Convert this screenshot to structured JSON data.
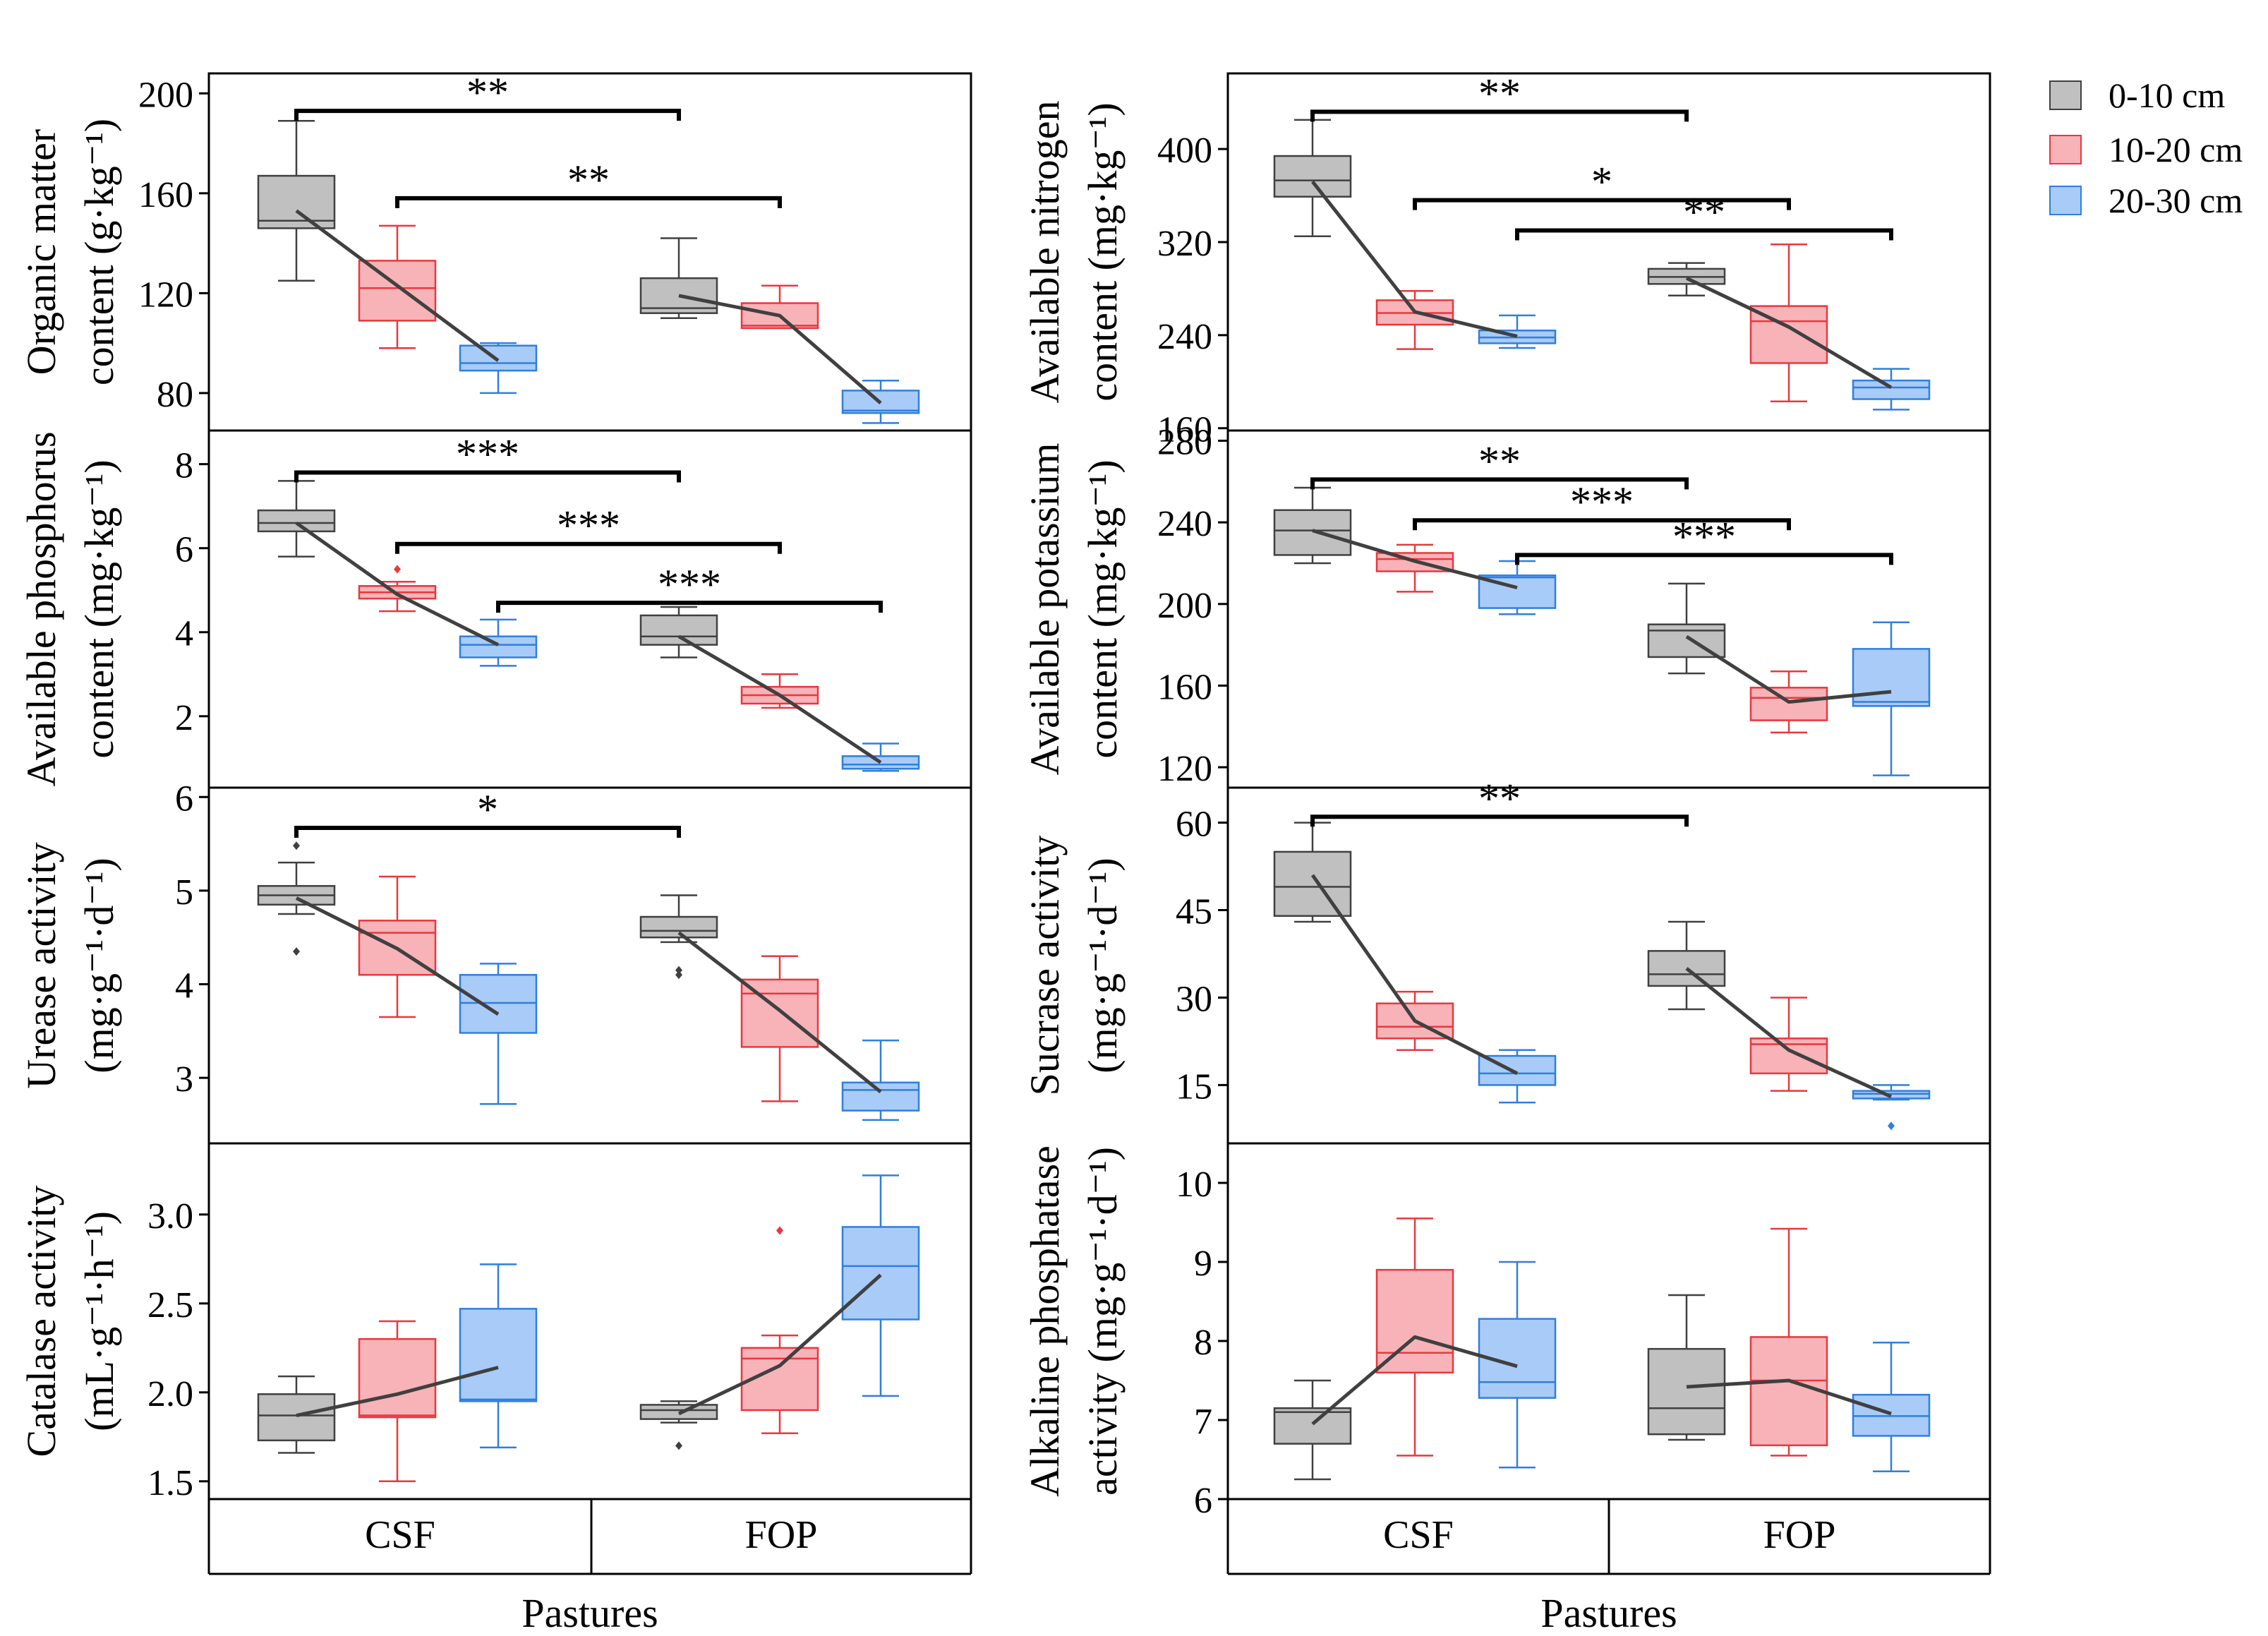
{
  "legend": [
    {
      "label": "0-10 cm",
      "fill": "#c0c0c0",
      "stroke": "#404040"
    },
    {
      "label": "10-20 cm",
      "fill": "#f7b3b8",
      "stroke": "#e8383d"
    },
    {
      "label": "20-30 cm",
      "fill": "#a9cbf7",
      "stroke": "#2f7fdd"
    }
  ],
  "xaxis": {
    "title": "Pastures",
    "categories": [
      "CSF",
      "FOP"
    ]
  },
  "colors": {
    "median_line": "#404040",
    "sig_bar": "#000000"
  },
  "chart_data": [
    {
      "type": "box",
      "ylabel_lines": [
        "Organic matter",
        "content (g·kg⁻¹)"
      ],
      "ylim": [
        65,
        208
      ],
      "yticks": [
        80,
        120,
        160,
        200
      ],
      "boxes": [
        {
          "pasture": "CSF",
          "depth": "0-10 cm",
          "min": 125,
          "q1": 146,
          "median": 149,
          "q3": 167,
          "max": 189,
          "mean": 153,
          "outliers": []
        },
        {
          "pasture": "CSF",
          "depth": "10-20 cm",
          "min": 98,
          "q1": 109,
          "median": 122,
          "q3": 133,
          "max": 147,
          "mean": 123,
          "outliers": []
        },
        {
          "pasture": "CSF",
          "depth": "20-30 cm",
          "min": 80,
          "q1": 89,
          "median": 92,
          "q3": 99,
          "max": 100,
          "mean": 93,
          "outliers": []
        },
        {
          "pasture": "FOP",
          "depth": "0-10 cm",
          "min": 110,
          "q1": 112,
          "median": 114,
          "q3": 126,
          "max": 142,
          "mean": 119,
          "outliers": []
        },
        {
          "pasture": "FOP",
          "depth": "10-20 cm",
          "min": 106,
          "q1": 106,
          "median": 107,
          "q3": 116,
          "max": 123,
          "mean": 111,
          "outliers": []
        },
        {
          "pasture": "FOP",
          "depth": "20-30 cm",
          "min": 68,
          "q1": 72,
          "median": 73,
          "q3": 81,
          "max": 85,
          "mean": 76,
          "outliers": []
        }
      ],
      "sig": [
        {
          "from": 0,
          "to": 3,
          "y": 193,
          "label": "**"
        },
        {
          "from": 1,
          "to": 4,
          "y": 158,
          "label": "**"
        }
      ]
    },
    {
      "type": "box",
      "ylabel_lines": [
        "Available nitrogen",
        "content (mg·kg⁻¹)"
      ],
      "ylim": [
        158,
        465
      ],
      "yticks": [
        160,
        240,
        320,
        400
      ],
      "boxes": [
        {
          "pasture": "CSF",
          "depth": "0-10 cm",
          "min": 325,
          "q1": 359,
          "median": 373,
          "q3": 394,
          "max": 425,
          "mean": 372,
          "outliers": []
        },
        {
          "pasture": "CSF",
          "depth": "10-20 cm",
          "min": 228,
          "q1": 249,
          "median": 259,
          "q3": 270,
          "max": 278,
          "mean": 260,
          "outliers": []
        },
        {
          "pasture": "CSF",
          "depth": "20-30 cm",
          "min": 229,
          "q1": 233,
          "median": 238,
          "q3": 244,
          "max": 257,
          "mean": 239,
          "outliers": []
        },
        {
          "pasture": "FOP",
          "depth": "0-10 cm",
          "min": 274,
          "q1": 284,
          "median": 290,
          "q3": 297,
          "max": 302,
          "mean": 289,
          "outliers": []
        },
        {
          "pasture": "FOP",
          "depth": "10-20 cm",
          "min": 183,
          "q1": 216,
          "median": 252,
          "q3": 265,
          "max": 318,
          "mean": 247,
          "outliers": []
        },
        {
          "pasture": "FOP",
          "depth": "20-30 cm",
          "min": 176,
          "q1": 185,
          "median": 195,
          "q3": 201,
          "max": 211,
          "mean": 195,
          "outliers": []
        }
      ],
      "sig": [
        {
          "from": 0,
          "to": 3,
          "y": 432,
          "label": "**"
        },
        {
          "from": 1,
          "to": 4,
          "y": 356,
          "label": "*"
        },
        {
          "from": 2,
          "to": 5,
          "y": 330,
          "label": "**"
        }
      ]
    },
    {
      "type": "box",
      "ylabel_lines": [
        "Available phosphorus",
        "content (mg·kg⁻¹)"
      ],
      "ylim": [
        0.3,
        8.8
      ],
      "yticks": [
        2,
        4,
        6,
        8
      ],
      "boxes": [
        {
          "pasture": "CSF",
          "depth": "0-10 cm",
          "min": 5.8,
          "q1": 6.4,
          "median": 6.6,
          "q3": 6.9,
          "max": 7.6,
          "mean": 6.6,
          "outliers": []
        },
        {
          "pasture": "CSF",
          "depth": "10-20 cm",
          "min": 4.5,
          "q1": 4.8,
          "median": 4.95,
          "q3": 5.1,
          "max": 5.2,
          "mean": 4.9,
          "outliers": [
            5.5
          ]
        },
        {
          "pasture": "CSF",
          "depth": "20-30 cm",
          "min": 3.2,
          "q1": 3.4,
          "median": 3.7,
          "q3": 3.9,
          "max": 4.3,
          "mean": 3.7,
          "outliers": []
        },
        {
          "pasture": "FOP",
          "depth": "0-10 cm",
          "min": 3.4,
          "q1": 3.7,
          "median": 3.9,
          "q3": 4.4,
          "max": 4.6,
          "mean": 3.9,
          "outliers": []
        },
        {
          "pasture": "FOP",
          "depth": "10-20 cm",
          "min": 2.2,
          "q1": 2.3,
          "median": 2.5,
          "q3": 2.7,
          "max": 3.0,
          "mean": 2.5,
          "outliers": []
        },
        {
          "pasture": "FOP",
          "depth": "20-30 cm",
          "min": 0.7,
          "q1": 0.75,
          "median": 0.85,
          "q3": 1.05,
          "max": 1.35,
          "mean": 0.9,
          "outliers": []
        }
      ],
      "sig": [
        {
          "from": 0,
          "to": 3,
          "y": 7.8,
          "label": "***"
        },
        {
          "from": 1,
          "to": 4,
          "y": 6.1,
          "label": "***"
        },
        {
          "from": 2,
          "to": 5,
          "y": 4.7,
          "label": "***"
        }
      ]
    },
    {
      "type": "box",
      "ylabel_lines": [
        "Available potassium",
        "content (mg·kg⁻¹)"
      ],
      "ylim": [
        110,
        285
      ],
      "yticks": [
        120,
        160,
        200,
        240,
        280
      ],
      "boxes": [
        {
          "pasture": "CSF",
          "depth": "0-10 cm",
          "min": 220,
          "q1": 224,
          "median": 236,
          "q3": 246,
          "max": 257,
          "mean": 236,
          "outliers": []
        },
        {
          "pasture": "CSF",
          "depth": "10-20 cm",
          "min": 206,
          "q1": 216,
          "median": 222,
          "q3": 225,
          "max": 229,
          "mean": 221,
          "outliers": []
        },
        {
          "pasture": "CSF",
          "depth": "20-30 cm",
          "min": 195,
          "q1": 198,
          "median": 213,
          "q3": 214,
          "max": 221,
          "mean": 208,
          "outliers": []
        },
        {
          "pasture": "FOP",
          "depth": "0-10 cm",
          "min": 166,
          "q1": 174,
          "median": 187,
          "q3": 190,
          "max": 210,
          "mean": 184,
          "outliers": []
        },
        {
          "pasture": "FOP",
          "depth": "10-20 cm",
          "min": 137,
          "q1": 143,
          "median": 154,
          "q3": 159,
          "max": 167,
          "mean": 152,
          "outliers": []
        },
        {
          "pasture": "FOP",
          "depth": "20-30 cm",
          "min": 116,
          "q1": 150,
          "median": 152,
          "q3": 178,
          "max": 191,
          "mean": 157,
          "outliers": []
        }
      ],
      "sig": [
        {
          "from": 0,
          "to": 3,
          "y": 261,
          "label": "**"
        },
        {
          "from": 1,
          "to": 4,
          "y": 241,
          "label": "***"
        },
        {
          "from": 2,
          "to": 5,
          "y": 224,
          "label": "***"
        }
      ]
    },
    {
      "type": "box",
      "ylabel_lines": [
        "Urease activity",
        "(mg·g⁻¹·d⁻¹)"
      ],
      "ylim": [
        2.3,
        6.1
      ],
      "yticks": [
        3,
        4,
        5,
        6
      ],
      "boxes": [
        {
          "pasture": "CSF",
          "depth": "0-10 cm",
          "min": 4.75,
          "q1": 4.85,
          "median": 4.95,
          "q3": 5.05,
          "max": 5.3,
          "mean": 4.92,
          "outliers": [
            4.35,
            5.48
          ]
        },
        {
          "pasture": "CSF",
          "depth": "10-20 cm",
          "min": 3.65,
          "q1": 4.1,
          "median": 4.55,
          "q3": 4.68,
          "max": 5.15,
          "mean": 4.38,
          "outliers": []
        },
        {
          "pasture": "CSF",
          "depth": "20-30 cm",
          "min": 2.72,
          "q1": 3.48,
          "median": 3.8,
          "q3": 4.1,
          "max": 4.22,
          "mean": 3.68,
          "outliers": []
        },
        {
          "pasture": "FOP",
          "depth": "0-10 cm",
          "min": 4.45,
          "q1": 4.5,
          "median": 4.57,
          "q3": 4.72,
          "max": 4.95,
          "mean": 4.55,
          "outliers": [
            4.1,
            4.15
          ]
        },
        {
          "pasture": "FOP",
          "depth": "10-20 cm",
          "min": 2.75,
          "q1": 3.33,
          "median": 3.9,
          "q3": 4.05,
          "max": 4.3,
          "mean": 3.72,
          "outliers": []
        },
        {
          "pasture": "FOP",
          "depth": "20-30 cm",
          "min": 2.55,
          "q1": 2.65,
          "median": 2.87,
          "q3": 2.95,
          "max": 3.4,
          "mean": 2.85,
          "outliers": []
        }
      ],
      "sig": [
        {
          "from": 0,
          "to": 3,
          "y": 5.67,
          "label": "*"
        }
      ]
    },
    {
      "type": "box",
      "ylabel_lines": [
        "Sucrase activity",
        "(mg·g⁻¹·d⁻¹)"
      ],
      "ylim": [
        5,
        66
      ],
      "yticks": [
        15,
        30,
        45,
        60
      ],
      "boxes": [
        {
          "pasture": "CSF",
          "depth": "0-10 cm",
          "min": 43,
          "q1": 44,
          "median": 49,
          "q3": 55,
          "max": 60,
          "mean": 51,
          "outliers": []
        },
        {
          "pasture": "CSF",
          "depth": "10-20 cm",
          "min": 21,
          "q1": 23,
          "median": 25,
          "q3": 29,
          "max": 31,
          "mean": 26,
          "outliers": []
        },
        {
          "pasture": "CSF",
          "depth": "20-30 cm",
          "min": 12,
          "q1": 15,
          "median": 17,
          "q3": 20,
          "max": 21,
          "mean": 17,
          "outliers": []
        },
        {
          "pasture": "FOP",
          "depth": "0-10 cm",
          "min": 28,
          "q1": 32,
          "median": 34,
          "q3": 38,
          "max": 43,
          "mean": 35,
          "outliers": []
        },
        {
          "pasture": "FOP",
          "depth": "10-20 cm",
          "min": 14,
          "q1": 17,
          "median": 22,
          "q3": 23,
          "max": 30,
          "mean": 21,
          "outliers": []
        },
        {
          "pasture": "FOP",
          "depth": "20-30 cm",
          "min": 12.5,
          "q1": 12.7,
          "median": 13.5,
          "q3": 14,
          "max": 15,
          "mean": 13,
          "outliers": [
            8
          ]
        }
      ],
      "sig": [
        {
          "from": 0,
          "to": 3,
          "y": 61,
          "label": "**"
        }
      ]
    },
    {
      "type": "box",
      "ylabel_lines": [
        "Catalase activity",
        "(mL·g⁻¹·h⁻¹)"
      ],
      "ylim": [
        1.4,
        3.4
      ],
      "yticks": [
        1.5,
        2.0,
        2.5,
        3.0
      ],
      "boxes": [
        {
          "pasture": "CSF",
          "depth": "0-10 cm",
          "min": 1.66,
          "q1": 1.73,
          "median": 1.87,
          "q3": 1.99,
          "max": 2.09,
          "mean": 1.87,
          "outliers": []
        },
        {
          "pasture": "CSF",
          "depth": "10-20 cm",
          "min": 1.5,
          "q1": 1.86,
          "median": 1.87,
          "q3": 2.3,
          "max": 2.4,
          "mean": 1.99,
          "outliers": []
        },
        {
          "pasture": "CSF",
          "depth": "20-30 cm",
          "min": 1.69,
          "q1": 1.95,
          "median": 1.96,
          "q3": 2.47,
          "max": 2.72,
          "mean": 2.14,
          "outliers": []
        },
        {
          "pasture": "FOP",
          "depth": "0-10 cm",
          "min": 1.83,
          "q1": 1.85,
          "median": 1.9,
          "q3": 1.93,
          "max": 1.95,
          "mean": 1.88,
          "outliers": [
            1.7
          ]
        },
        {
          "pasture": "FOP",
          "depth": "10-20 cm",
          "min": 1.77,
          "q1": 1.9,
          "median": 2.19,
          "q3": 2.25,
          "max": 2.32,
          "mean": 2.15,
          "outliers": [
            2.91
          ]
        },
        {
          "pasture": "FOP",
          "depth": "20-30 cm",
          "min": 1.98,
          "q1": 2.41,
          "median": 2.71,
          "q3": 2.93,
          "max": 3.22,
          "mean": 2.66,
          "outliers": []
        }
      ],
      "sig": []
    },
    {
      "type": "box",
      "ylabel_lines": [
        "Alkaline phosphatase",
        "activity (mg·g⁻¹·d⁻¹)"
      ],
      "ylim": [
        6,
        10.5
      ],
      "yticks": [
        6,
        7,
        8,
        9,
        10
      ],
      "boxes": [
        {
          "pasture": "CSF",
          "depth": "0-10 cm",
          "min": 6.25,
          "q1": 6.7,
          "median": 7.1,
          "q3": 7.15,
          "max": 7.5,
          "mean": 6.95,
          "outliers": []
        },
        {
          "pasture": "CSF",
          "depth": "10-20 cm",
          "min": 6.55,
          "q1": 7.6,
          "median": 7.85,
          "q3": 8.9,
          "max": 9.55,
          "mean": 8.05,
          "outliers": []
        },
        {
          "pasture": "CSF",
          "depth": "20-30 cm",
          "min": 6.4,
          "q1": 7.28,
          "median": 7.48,
          "q3": 8.28,
          "max": 9.0,
          "mean": 7.68,
          "outliers": []
        },
        {
          "pasture": "FOP",
          "depth": "0-10 cm",
          "min": 6.75,
          "q1": 6.82,
          "median": 7.15,
          "q3": 7.9,
          "max": 8.58,
          "mean": 7.42,
          "outliers": []
        },
        {
          "pasture": "FOP",
          "depth": "10-20 cm",
          "min": 6.55,
          "q1": 6.68,
          "median": 7.5,
          "q3": 8.05,
          "max": 9.42,
          "mean": 7.5,
          "outliers": []
        },
        {
          "pasture": "FOP",
          "depth": "20-30 cm",
          "min": 6.35,
          "q1": 6.8,
          "median": 7.05,
          "q3": 7.32,
          "max": 7.98,
          "mean": 7.08,
          "outliers": []
        }
      ],
      "sig": []
    }
  ]
}
